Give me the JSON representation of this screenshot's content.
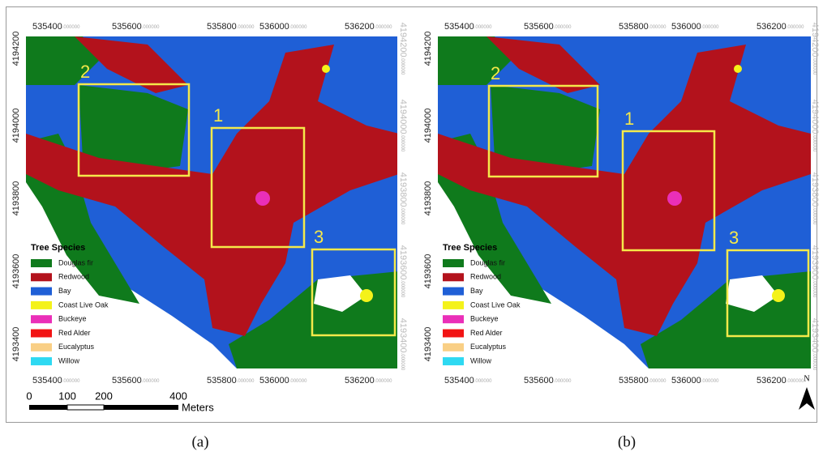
{
  "panels": [
    {
      "caption": "(a)"
    },
    {
      "caption": "(b)"
    }
  ],
  "x_ticks": [
    "535400",
    "535600",
    "535800",
    "536000",
    "536200"
  ],
  "y_ticks": [
    "4194200",
    "4194000",
    "4193800",
    "4193600",
    "4193400"
  ],
  "coord_suffix": ".000000",
  "regions": [
    "1",
    "2",
    "3"
  ],
  "legend": {
    "title": "Tree Species",
    "items": [
      {
        "label": "Douglas fir",
        "color": "#0f7a1c"
      },
      {
        "label": "Redwood",
        "color": "#b3121c"
      },
      {
        "label": "Bay",
        "color": "#1f5fd6"
      },
      {
        "label": "Coast Live Oak",
        "color": "#f4f21a"
      },
      {
        "label": "Buckeye",
        "color": "#ea2fb8"
      },
      {
        "label": "Red Alder",
        "color": "#f21414"
      },
      {
        "label": "Eucalyptus",
        "color": "#f9cf85"
      },
      {
        "label": "Willow",
        "color": "#2ed9f2"
      }
    ]
  },
  "scale_bar": {
    "labels": [
      "0",
      "100",
      "200",
      "400"
    ],
    "unit": "Meters"
  },
  "north": "N"
}
